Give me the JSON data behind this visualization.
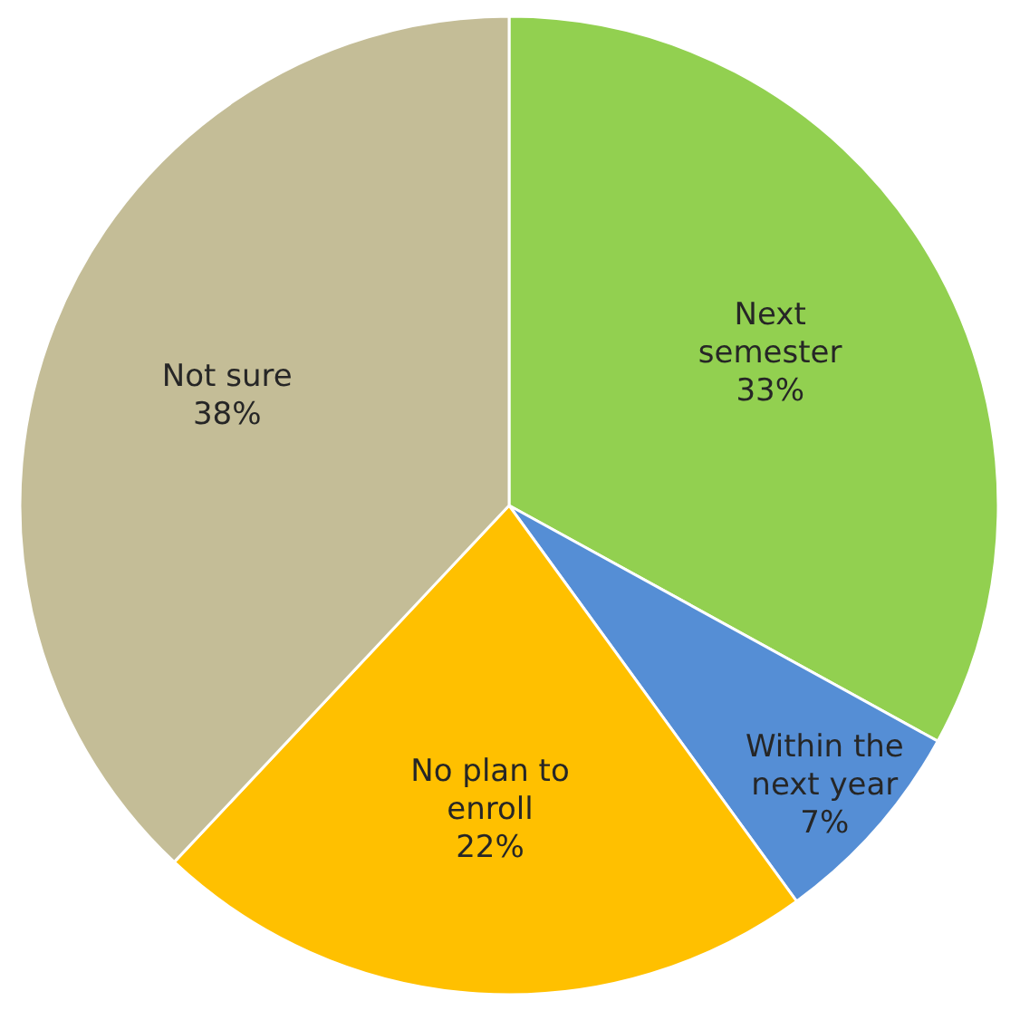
{
  "chart_data": {
    "type": "pie",
    "categories": [
      "Next semester",
      "Within the next year",
      "No plan to enroll",
      "Not sure"
    ],
    "values": [
      33,
      7,
      22,
      38
    ],
    "colors": [
      "#92d050",
      "#558ed5",
      "#ffc000",
      "#c4bd97"
    ],
    "value_labels": [
      "33%",
      "7%",
      "22%",
      "38%"
    ]
  }
}
